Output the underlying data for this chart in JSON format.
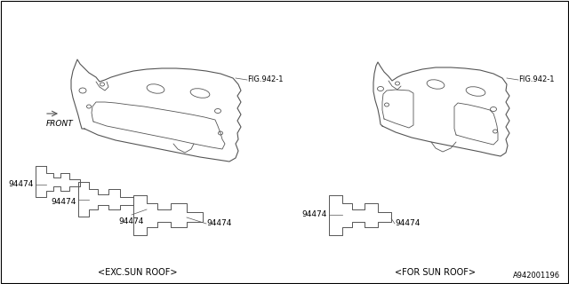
{
  "bg_color": "#ffffff",
  "border_color": "#000000",
  "line_color": "#555555",
  "text_color": "#000000",
  "part_number": "94474",
  "fig_ref": "FIG.942-1",
  "left_caption": "<EXC.SUN ROOF>",
  "right_caption": "<FOR SUN ROOF>",
  "front_label": "FRONT",
  "diagram_id": "A942001196",
  "font_size_caption": 7,
  "font_size_part": 6.5,
  "font_size_fig": 6,
  "font_size_id": 6
}
